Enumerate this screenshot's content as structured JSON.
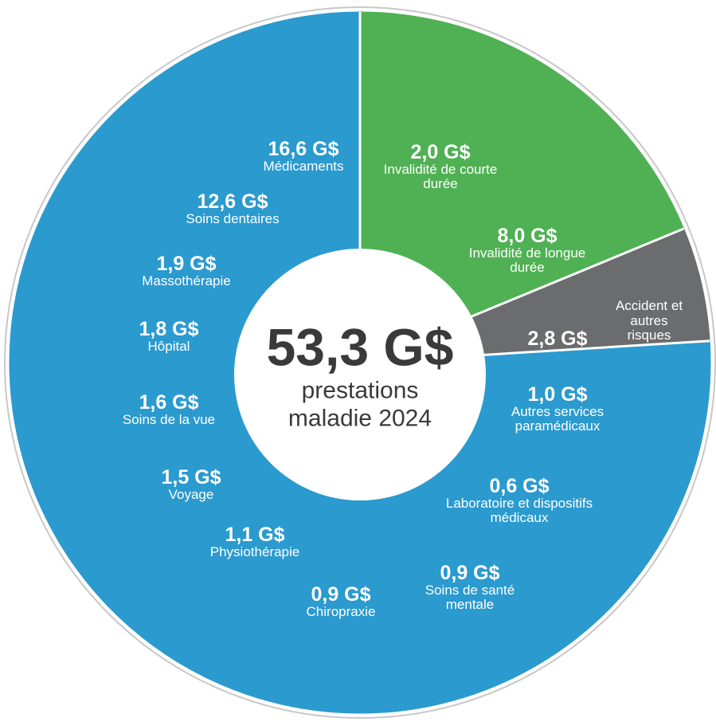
{
  "chart_data": {
    "type": "pie",
    "title": "53,3 G$",
    "subtitle": "prestations maladie 2024",
    "categories": [
      "Invalidité de courte durée",
      "Invalidité de longue durée",
      "Accident et autres risques",
      "Autres services paramédicaux",
      "Laboratoire et dispositifs médicaux",
      "Soins de santé mentale",
      "Chiropraxie",
      "Physiothérapie",
      "Voyage",
      "Soins de la vue",
      "Hôpital",
      "Massothérapie",
      "Soins dentaires",
      "Médicaments"
    ],
    "values": [
      2.0,
      8.0,
      2.8,
      1.0,
      0.6,
      0.9,
      0.9,
      1.1,
      1.5,
      1.6,
      1.8,
      1.9,
      12.6,
      16.6
    ],
    "value_labels": [
      "2,0 G$",
      "8,0 G$",
      "2,8 G$",
      "1,0 G$",
      "0,6 G$",
      "0,9 G$",
      "0,9 G$",
      "1,1 G$",
      "1,5 G$",
      "1,6 G$",
      "1,8 G$",
      "1,9 G$",
      "12,6 G$",
      "16,6 G$"
    ],
    "colors": [
      "#4fb153",
      "#4fb153",
      "#6b6c6e",
      "#2b9ace",
      "#2b9ace",
      "#2b9ace",
      "#2b9ace",
      "#2b9ace",
      "#2b9ace",
      "#2b9ace",
      "#2b9ace",
      "#2b9ace",
      "#2b9ace",
      "#2b9ace"
    ]
  }
}
